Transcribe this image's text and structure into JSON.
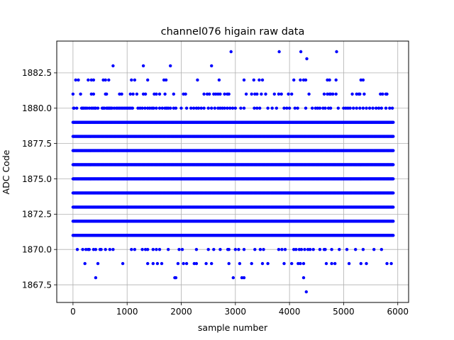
{
  "chart_data": {
    "type": "scatter",
    "title": "channel076 higain raw data",
    "xlabel": "sample number",
    "ylabel": "ADC Code",
    "xlim": [
      -300,
      6200
    ],
    "ylim": [
      1866.25,
      1884.75
    ],
    "grid": true,
    "marker_color": "#0000ff",
    "x_ticks": [
      0,
      1000,
      2000,
      3000,
      4000,
      5000,
      6000
    ],
    "x_tick_labels": [
      "0",
      "1000",
      "2000",
      "3000",
      "4000",
      "5000",
      "6000"
    ],
    "y_ticks": [
      1867.5,
      1870.0,
      1872.5,
      1875.0,
      1877.5,
      1880.0,
      1882.5
    ],
    "y_tick_labels": [
      "1867.5",
      "1870.0",
      "1872.5",
      "1875.0",
      "1877.5",
      "1880.0",
      "1882.5"
    ],
    "n_samples": 5920,
    "dense_levels": [
      1871,
      1872,
      1873,
      1874,
      1875,
      1876,
      1877,
      1878,
      1879
    ],
    "sparse_levels": {
      "1880": [
        10,
        20,
        70,
        160,
        180,
        200,
        230,
        260,
        300,
        340,
        370,
        400,
        420,
        460,
        540,
        560,
        580,
        620,
        640,
        660,
        680,
        700,
        720,
        760,
        800,
        830,
        860,
        890,
        920,
        950,
        980,
        1010,
        1040,
        1070,
        1100,
        1200,
        1240,
        1280,
        1330,
        1380,
        1420,
        1460,
        1490,
        1540,
        1600,
        1650,
        1700,
        1730,
        1760,
        1800,
        1860,
        1900,
        2000,
        2100,
        2180,
        2230,
        2280,
        2320,
        2370,
        2420,
        2500,
        2560,
        2620,
        2680,
        2720,
        2760,
        2800,
        2850,
        2900,
        2950,
        3000,
        3100,
        3160,
        3350,
        3400,
        3450,
        3600,
        3680,
        3760,
        3900,
        3950,
        4000,
        4100,
        4150,
        4300,
        4420,
        4480,
        4520,
        4560,
        4620,
        4660,
        4720,
        4760,
        4900,
        5000,
        5040,
        5080,
        5120,
        5180,
        5240,
        5300,
        5360,
        5420,
        5480,
        5540,
        5600,
        5650,
        5700,
        5780,
        5850,
        5900
      ],
      "1881": [
        0,
        140,
        340,
        380,
        600,
        620,
        860,
        900,
        1060,
        1110,
        1180,
        1300,
        1340,
        1500,
        1540,
        1600,
        1700,
        1860,
        2040,
        2080,
        2420,
        2480,
        2520,
        2600,
        2640,
        2680,
        2720,
        2800,
        2850,
        2880,
        3200,
        3300,
        3360,
        3400,
        3480,
        3560,
        3720,
        3800,
        3850,
        3980,
        4040,
        4360,
        4640,
        4700,
        4740,
        4760,
        4800,
        4860,
        5160,
        5240,
        5280,
        5300,
        5380,
        5680,
        5720,
        5780,
        5800
      ],
      "1882": [
        50,
        100,
        280,
        340,
        380,
        560,
        600,
        660,
        1080,
        1140,
        1380,
        1680,
        1720,
        2300,
        2700,
        3160,
        3340,
        3440,
        3500,
        4080,
        4200,
        4260,
        4300,
        4700,
        4740,
        4860,
        5320,
        5360
      ],
      "1883": [
        740,
        1300,
        1800,
        2560
      ],
      "1884": [
        2920,
        3810,
        4210,
        4870
      ],
      "1883.5": [
        4320
      ],
      "1870": [
        80,
        180,
        240,
        280,
        300,
        380,
        420,
        500,
        520,
        600,
        680,
        740,
        1080,
        1140,
        1280,
        1340,
        1380,
        1480,
        1540,
        1600,
        1760,
        1960,
        2020,
        2280,
        2500,
        2600,
        2720,
        2860,
        2880,
        3000,
        3060,
        3160,
        3360,
        3460,
        3520,
        3800,
        3860,
        3920,
        4080,
        4120,
        4180,
        4220,
        4280,
        4340,
        4380,
        4440,
        4560,
        4640,
        4660,
        4780,
        4920,
        5060,
        5220,
        5360,
        5560,
        5700
      ],
      "1869": [
        220,
        460,
        920,
        1380,
        1480,
        1560,
        1640,
        1940,
        2040,
        2100,
        2240,
        2280,
        2460,
        2560,
        2880,
        3080,
        3300,
        3500,
        3600,
        3900,
        4040,
        4160,
        4200,
        4260,
        4680,
        4780,
        4840,
        5100,
        5320,
        5420,
        5800,
        5880
      ],
      "1868": [
        420,
        1880,
        1900,
        2960,
        3120,
        3160,
        4260
      ],
      "1867": [
        4310
      ]
    }
  }
}
